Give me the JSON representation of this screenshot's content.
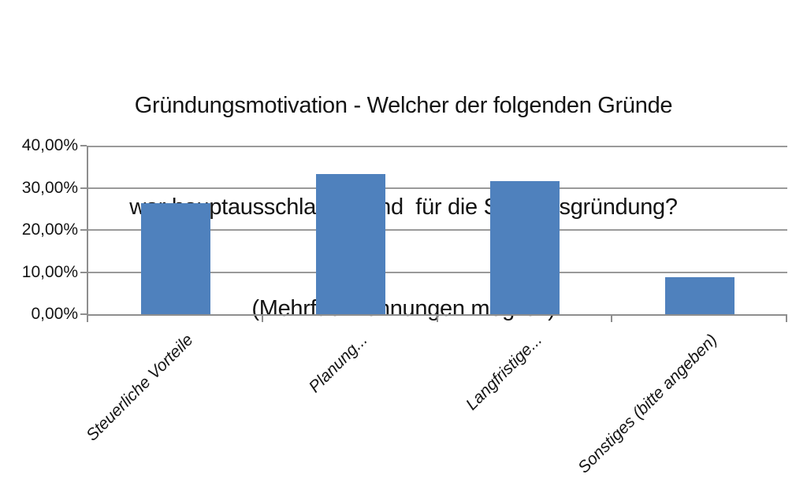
{
  "chart_data": {
    "type": "bar",
    "title": "Gründungsmotivation - Welcher der folgenden Gründe war hauptausschlaggebend für die Stiftungsgründung? (Mehrfachnennungen möglich)",
    "title_lines": [
      "Gründungsmotivation - Welcher der folgenden Gründe",
      "war hauptausschlaggebend  für die Stiftungsgründung?",
      "(Mehrfachnennungen möglich)"
    ],
    "categories": [
      "Steuerliche Vorteile",
      "Planung...",
      "Langfristige...",
      "Sonstiges (bitte angeben)"
    ],
    "values": [
      26.32,
      33.33,
      31.58,
      8.77
    ],
    "xlabel": "",
    "ylabel": "",
    "ylim": [
      0,
      40
    ],
    "y_ticks_top_to_bottom": [
      "40,00%",
      "30,00%",
      "20,00%",
      "10,00%",
      "0,00%"
    ],
    "grid": "horizontal",
    "legend": "none",
    "bar_color": "#4f81bd",
    "gridline_color": "#9a9a9a",
    "axis_color": "#8e8e8e",
    "text_color": "#141414",
    "background": "#ffffff"
  }
}
